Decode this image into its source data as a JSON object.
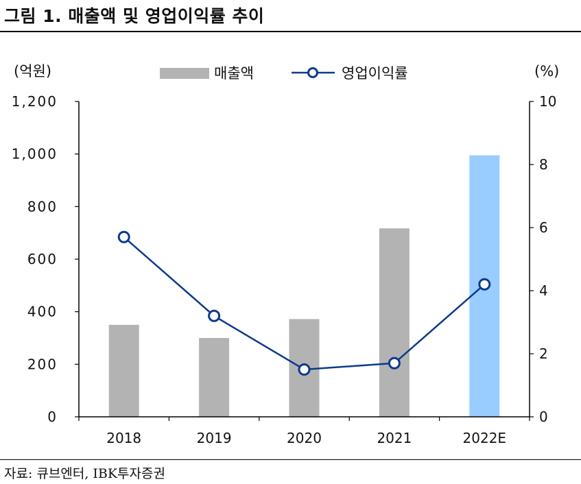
{
  "title": "그림 1. 매출액 및 영업이익률 추이",
  "source": "자료: 큐브엔터, IBK투자증권",
  "chart_data": {
    "type": "bar+line",
    "categories": [
      "2018",
      "2019",
      "2020",
      "2021",
      "2022E"
    ],
    "series": [
      {
        "name": "매출액",
        "type": "bar",
        "axis": "left",
        "values": [
          350,
          300,
          372,
          717,
          995
        ],
        "colors": [
          "#b3b3b3",
          "#b3b3b3",
          "#b3b3b3",
          "#b3b3b3",
          "#99ccff"
        ]
      },
      {
        "name": "영업이익률",
        "type": "line",
        "axis": "right",
        "values": [
          5.7,
          3.2,
          1.5,
          1.7,
          4.2
        ],
        "color": "#0b3a8c"
      }
    ],
    "left_axis": {
      "label": "(억원)",
      "min": 0,
      "max": 1200,
      "ticks": [
        0,
        200,
        400,
        600,
        800,
        1000,
        1200
      ],
      "tick_labels": [
        "0",
        "200",
        "400",
        "600",
        "800",
        "1,000",
        "1,200"
      ]
    },
    "right_axis": {
      "label": "(%)",
      "min": 0,
      "max": 10,
      "ticks": [
        0,
        2,
        4,
        6,
        8,
        10
      ],
      "tick_labels": [
        "0",
        "2",
        "4",
        "6",
        "8",
        "10"
      ]
    },
    "legend": {
      "position": "top",
      "entries": [
        "매출액",
        "영업이익률"
      ]
    },
    "grid": false
  }
}
